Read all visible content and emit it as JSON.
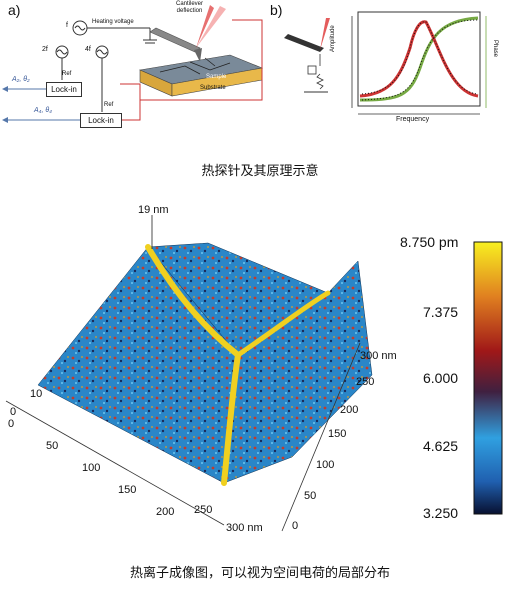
{
  "panel_a": {
    "label": "a)",
    "heating_voltage": "Heating voltage",
    "f_label": "f",
    "cantilever": "Cantilever\ndeflection",
    "f2": "2f",
    "f4": "4f",
    "ref1": "Ref",
    "ref2": "Ref",
    "lockin1": "Lock-in",
    "lockin2": "Lock-in",
    "out1": "A₂, θ₂",
    "out2": "A₄, θ₄",
    "sample": "Sample",
    "substrate": "Substrate"
  },
  "panel_b": {
    "label": "b)",
    "ylabel_left": "Amplitude",
    "ylabel_right": "Phase",
    "xlabel": "Frequency"
  },
  "caption_top": "热探针及其原理示意",
  "map": {
    "annotation": "19 nm",
    "axis_left_ticks": [
      "0",
      "50",
      "100",
      "150",
      "200",
      "250",
      "300 nm"
    ],
    "axis_right_ticks": [
      "0",
      "50",
      "100",
      "150",
      "200",
      "250",
      "300 nm"
    ],
    "axis_vertical_ticks": [
      "0",
      "10"
    ],
    "colorbar_ticks": [
      "8.750 pm",
      "7.375",
      "6.000",
      "4.625",
      "3.250"
    ]
  },
  "caption_bottom": "热离子成像图，可以视为空间电荷的局部分布"
}
